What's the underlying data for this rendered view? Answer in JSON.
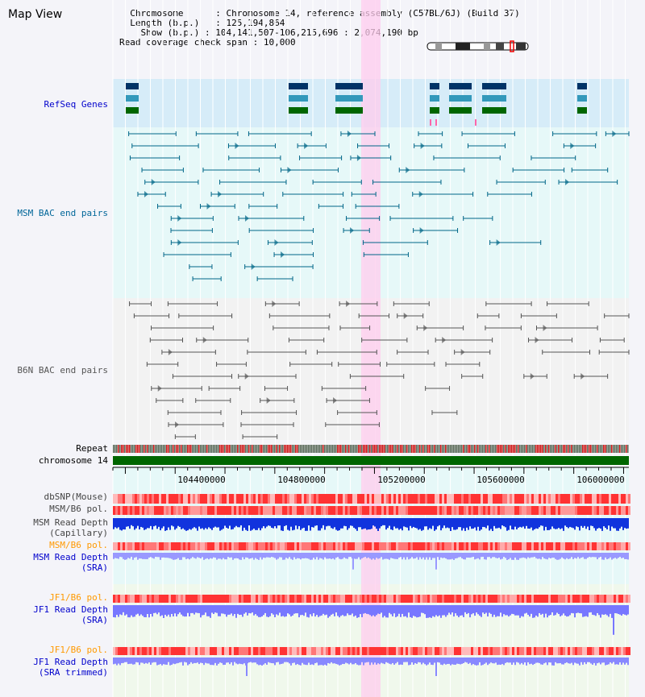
{
  "title": "Map View",
  "header": {
    "chromosome_key": "Chromosome",
    "chromosome_value": "Chromosome 14, reference assembly (C57BL/6J) (Build 37)",
    "length_key": "Length (b.p.)",
    "length_value": "125,194,864",
    "show_key": "Show (b.p.)",
    "show_value": "104,141,507-106,215,696 : 2,074,190 bp",
    "coverage_key": "Read coverage check span",
    "coverage_value": "10,000"
  },
  "tracks": {
    "refseq": "RefSeq Genes",
    "msm_bac": "MSM BAC end pairs",
    "b6n_bac": "B6N BAC end pairs",
    "repeat": "Repeat",
    "chromosome": "chromosome 14",
    "dbsnp": "dbSNP(Mouse)",
    "msm_b6_pol_1": "MSM/B6 pol.",
    "msm_read_depth_cap_1": "MSM Read Depth",
    "msm_read_depth_cap_2": "(Capillary)",
    "msm_b6_pol_2": "MSM/B6 pol.",
    "msm_read_depth_sra_1": "MSM Read Depth",
    "msm_read_depth_sra_2": "(SRA)",
    "jf1_b6_pol_1": "JF1/B6 pol.",
    "jf1_read_depth_sra_1": "JF1 Read Depth",
    "jf1_read_depth_sra_2": "(SRA)",
    "jf1_b6_pol_2": "JF1/B6 pol.",
    "jf1_read_depth_trim_1": "JF1 Read Depth",
    "jf1_read_depth_trim_2": "(SRA trimmed)"
  },
  "axis": {
    "ticks": [
      "104400000",
      "104800000",
      "105200000",
      "105600000",
      "106000000"
    ]
  },
  "colors": {
    "refseq_label": "#0000cc",
    "msm_label": "#006699",
    "b6n_label": "#444444",
    "jf1_pol_label": "#ff9900",
    "msm_pol_label_2": "#ff9900",
    "highlight": "#ffccee",
    "chromosome_bar": "#006600",
    "msm_pairs": "#006688",
    "b6n_pairs": "#555555"
  }
}
